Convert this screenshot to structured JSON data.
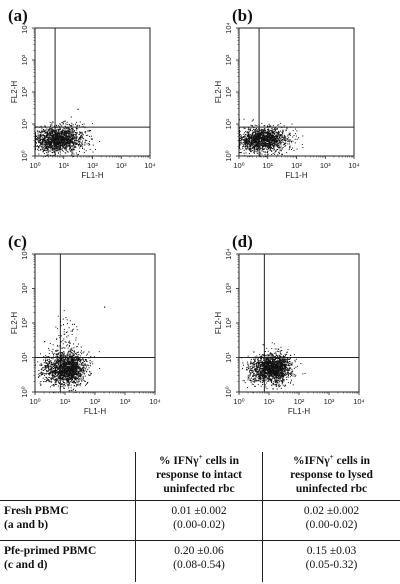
{
  "chart_data": [
    {
      "type": "scatter",
      "panel": "(a)",
      "xlabel": "FL1-H",
      "ylabel": "FL2-H",
      "xscale": "log",
      "yscale": "log",
      "xlim": [
        1,
        10000
      ],
      "ylim": [
        1,
        10000
      ],
      "x_ticks": [
        "10⁰",
        "10¹",
        "10²",
        "10³",
        "10⁴"
      ],
      "y_ticks": [
        "10⁰",
        "10¹",
        "10²",
        "10³",
        "10⁴"
      ],
      "quadrant_gate": {
        "x": 5,
        "y": 8
      },
      "populations": [
        {
          "center_x": 7,
          "center_y": 3.5,
          "spread_x": 0.42,
          "spread_y": 0.2,
          "points": 1400
        },
        {
          "center_x": 2.5,
          "center_y": 2.6,
          "spread_x": 0.22,
          "spread_y": 0.17,
          "points": 120
        }
      ],
      "sparse_points": [
        [
          30,
          30
        ],
        [
          4,
          12
        ],
        [
          15,
          10
        ]
      ]
    },
    {
      "type": "scatter",
      "panel": "(b)",
      "xlabel": "FL1-H",
      "ylabel": "FL2-H",
      "xscale": "log",
      "yscale": "log",
      "xlim": [
        1,
        10000
      ],
      "ylim": [
        1,
        10000
      ],
      "x_ticks": [
        "10⁰",
        "10¹",
        "10²",
        "10³",
        "10⁴"
      ],
      "y_ticks": [
        "10⁰",
        "10¹",
        "10²",
        "10³",
        "10⁴"
      ],
      "quadrant_gate": {
        "x": 5,
        "y": 8
      },
      "populations": [
        {
          "center_x": 7,
          "center_y": 3.4,
          "spread_x": 0.42,
          "spread_y": 0.19,
          "points": 1400
        },
        {
          "center_x": 2.5,
          "center_y": 2.5,
          "spread_x": 0.22,
          "spread_y": 0.17,
          "points": 110
        }
      ],
      "sparse_points": [
        [
          3,
          14
        ],
        [
          12,
          9
        ]
      ]
    },
    {
      "type": "scatter",
      "panel": "(c)",
      "xlabel": "FL1-H",
      "ylabel": "FL2-H",
      "xscale": "log",
      "yscale": "log",
      "xlim": [
        1,
        10000
      ],
      "ylim": [
        1,
        10000
      ],
      "x_ticks": [
        "10⁰",
        "10¹",
        "10²",
        "10³",
        "10⁴"
      ],
      "y_ticks": [
        "10⁰",
        "10¹",
        "10²",
        "10³",
        "10⁴"
      ],
      "quadrant_gate": {
        "x": 7,
        "y": 10
      },
      "populations": [
        {
          "center_x": 12,
          "center_y": 5,
          "spread_x": 0.3,
          "spread_y": 0.24,
          "points": 1600
        },
        {
          "center_x": 3,
          "center_y": 4.5,
          "spread_x": 0.18,
          "spread_y": 0.2,
          "points": 160
        },
        {
          "center_x": 10,
          "center_y": 40,
          "spread_x": 0.2,
          "spread_y": 0.35,
          "points": 70
        }
      ],
      "sparse_points": [
        [
          200,
          300
        ],
        [
          2,
          30
        ],
        [
          60,
          15
        ]
      ]
    },
    {
      "type": "scatter",
      "panel": "(d)",
      "xlabel": "FL1-H",
      "ylabel": "FL2-H",
      "xscale": "log",
      "yscale": "log",
      "xlim": [
        1,
        10000
      ],
      "ylim": [
        1,
        10000
      ],
      "x_ticks": [
        "10⁰",
        "10¹",
        "10²",
        "10³",
        "10⁴"
      ],
      "y_ticks": [
        "10⁰",
        "10¹",
        "10²",
        "10³",
        "10⁴"
      ],
      "quadrant_gate": {
        "x": 7,
        "y": 10
      },
      "populations": [
        {
          "center_x": 14,
          "center_y": 5,
          "spread_x": 0.3,
          "spread_y": 0.22,
          "points": 1600
        },
        {
          "center_x": 3.5,
          "center_y": 4,
          "spread_x": 0.2,
          "spread_y": 0.2,
          "points": 170
        }
      ],
      "sparse_points": [
        [
          3,
          15
        ],
        [
          50,
          12
        ],
        [
          20,
          18
        ]
      ]
    }
  ],
  "panels": [
    {
      "label": "(a)"
    },
    {
      "label": "(b)"
    },
    {
      "label": "(c)"
    },
    {
      "label": "(d)"
    }
  ],
  "table": {
    "col1_header": [
      "% IFNγ",
      "+",
      " cells in",
      "response to intact",
      "uninfected rbc"
    ],
    "col2_header": [
      "%IFNγ",
      "+",
      " cells in",
      "response to lysed",
      "uninfected rbc"
    ],
    "rows": [
      {
        "label_line1": "Fresh PBMC",
        "label_line2": "(a and b)",
        "col1_line1": "0.01 ±0.002",
        "col1_line2": "(0.00-0.02)",
        "col2_line1": "0.02 ±0.002",
        "col2_line2": "(0.00-0.02)"
      },
      {
        "label_line1": "Pfe-primed PBMC",
        "label_line2": "(c and d)",
        "col1_line1": "0.20 ±0.06",
        "col1_line2": "(0.08-0.54)",
        "col2_line1": "0.15 ±0.03",
        "col2_line2": "(0.05-0.32)"
      }
    ]
  }
}
